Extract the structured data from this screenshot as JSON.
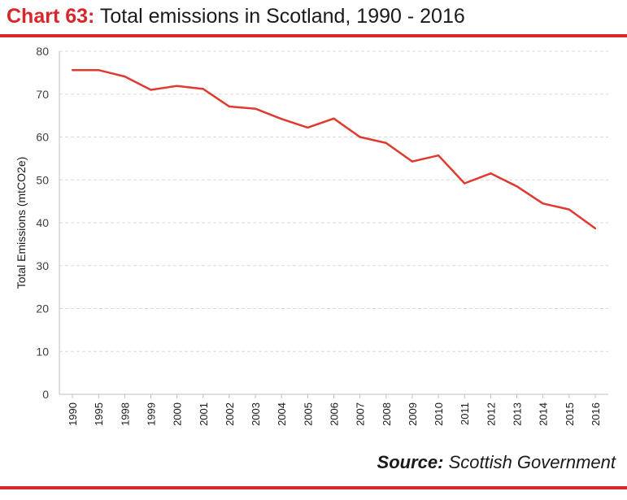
{
  "header": {
    "label": "Chart 63:",
    "title": "Total emissions in Scotland, 1990 - 2016"
  },
  "source": {
    "label": "Source:",
    "value": "Scottish Government"
  },
  "colors": {
    "accent": "#d9262b",
    "line": "#e03a30",
    "grid": "#d9d9d9",
    "axis": "#bfbfbf",
    "text": "#404040"
  },
  "chart_data": {
    "type": "line",
    "ylabel": "Total Emissions  (mtCO2e)",
    "xlabel": "",
    "ylim": [
      0,
      80
    ],
    "yticks": [
      0,
      10,
      20,
      30,
      40,
      50,
      60,
      70,
      80
    ],
    "grid": "horizontal dashed",
    "legend": "none",
    "categories": [
      "1990",
      "1995",
      "1998",
      "1999",
      "2000",
      "2001",
      "2002",
      "2003",
      "2004",
      "2005",
      "2006",
      "2007",
      "2008",
      "2009",
      "2010",
      "2011",
      "2012",
      "2013",
      "2014",
      "2015",
      "2016"
    ],
    "values": [
      75.6,
      75.6,
      74.1,
      71.0,
      71.9,
      71.2,
      67.1,
      66.6,
      64.2,
      62.2,
      64.3,
      60.0,
      58.6,
      54.3,
      55.7,
      49.2,
      51.5,
      48.5,
      44.5,
      43.1,
      38.7
    ]
  }
}
